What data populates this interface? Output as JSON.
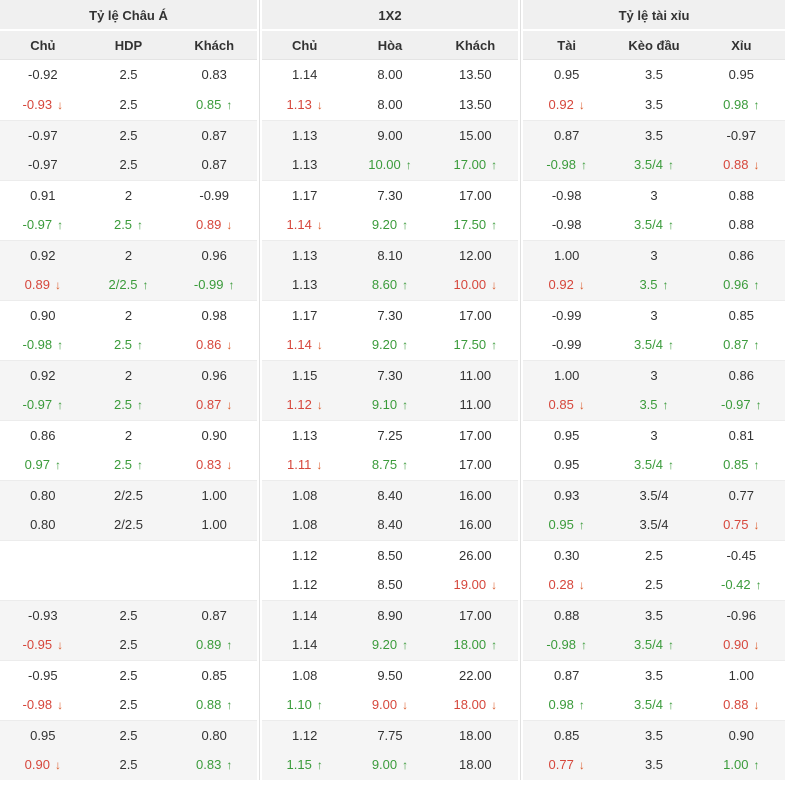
{
  "header": {
    "groups": [
      {
        "title": "Tỷ lệ Châu Á",
        "cols": [
          "Chủ",
          "HDP",
          "Khách"
        ]
      },
      {
        "title": "1X2",
        "cols": [
          "Chủ",
          "Hòa",
          "Khách"
        ]
      },
      {
        "title": "Tỷ lệ tài xỉu",
        "cols": [
          "Tài",
          "Kèo đầu",
          "Xỉu"
        ]
      }
    ]
  },
  "icons": {
    "up": "↑",
    "down": "↓"
  },
  "colors": {
    "up": "#3b9b3b",
    "down": "#d6473c",
    "arrow_up": "#3b9b3b",
    "arrow_down": "#dd5c2c",
    "text": "#333333",
    "header_bg": "#f0f0f0",
    "shaded_row_bg": "#f5f5f5",
    "divider": "#e0e0e0"
  },
  "rows": [
    {
      "shaded": false,
      "cells": [
        [
          "-0.92",
          ""
        ],
        [
          "2.5",
          ""
        ],
        [
          "0.83",
          ""
        ],
        [
          "1.14",
          ""
        ],
        [
          "8.00",
          ""
        ],
        [
          "13.50",
          ""
        ],
        [
          "0.95",
          ""
        ],
        [
          "3.5",
          ""
        ],
        [
          "0.95",
          ""
        ]
      ]
    },
    {
      "shaded": false,
      "cells": [
        [
          "-0.93",
          "down"
        ],
        [
          "2.5",
          ""
        ],
        [
          "0.85",
          "up"
        ],
        [
          "1.13",
          "down"
        ],
        [
          "8.00",
          ""
        ],
        [
          "13.50",
          ""
        ],
        [
          "0.92",
          "down"
        ],
        [
          "3.5",
          ""
        ],
        [
          "0.98",
          "up"
        ]
      ]
    },
    {
      "shaded": true,
      "cells": [
        [
          "-0.97",
          ""
        ],
        [
          "2.5",
          ""
        ],
        [
          "0.87",
          ""
        ],
        [
          "1.13",
          ""
        ],
        [
          "9.00",
          ""
        ],
        [
          "15.00",
          ""
        ],
        [
          "0.87",
          ""
        ],
        [
          "3.5",
          ""
        ],
        [
          "-0.97",
          ""
        ]
      ]
    },
    {
      "shaded": true,
      "cells": [
        [
          "-0.97",
          ""
        ],
        [
          "2.5",
          ""
        ],
        [
          "0.87",
          ""
        ],
        [
          "1.13",
          ""
        ],
        [
          "10.00",
          "up"
        ],
        [
          "17.00",
          "up"
        ],
        [
          "-0.98",
          "up"
        ],
        [
          "3.5/4",
          "up"
        ],
        [
          "0.88",
          "down"
        ]
      ]
    },
    {
      "shaded": false,
      "cells": [
        [
          "0.91",
          ""
        ],
        [
          "2",
          ""
        ],
        [
          "-0.99",
          ""
        ],
        [
          "1.17",
          ""
        ],
        [
          "7.30",
          ""
        ],
        [
          "17.00",
          ""
        ],
        [
          "-0.98",
          ""
        ],
        [
          "3",
          ""
        ],
        [
          "0.88",
          ""
        ]
      ]
    },
    {
      "shaded": false,
      "cells": [
        [
          "-0.97",
          "up"
        ],
        [
          "2.5",
          "up"
        ],
        [
          "0.89",
          "down"
        ],
        [
          "1.14",
          "down"
        ],
        [
          "9.20",
          "up"
        ],
        [
          "17.50",
          "up"
        ],
        [
          "-0.98",
          ""
        ],
        [
          "3.5/4",
          "up"
        ],
        [
          "0.88",
          ""
        ]
      ]
    },
    {
      "shaded": true,
      "cells": [
        [
          "0.92",
          ""
        ],
        [
          "2",
          ""
        ],
        [
          "0.96",
          ""
        ],
        [
          "1.13",
          ""
        ],
        [
          "8.10",
          ""
        ],
        [
          "12.00",
          ""
        ],
        [
          "1.00",
          ""
        ],
        [
          "3",
          ""
        ],
        [
          "0.86",
          ""
        ]
      ]
    },
    {
      "shaded": true,
      "cells": [
        [
          "0.89",
          "down"
        ],
        [
          "2/2.5",
          "up"
        ],
        [
          "-0.99",
          "up"
        ],
        [
          "1.13",
          ""
        ],
        [
          "8.60",
          "up"
        ],
        [
          "10.00",
          "down"
        ],
        [
          "0.92",
          "down"
        ],
        [
          "3.5",
          "up"
        ],
        [
          "0.96",
          "up"
        ]
      ]
    },
    {
      "shaded": false,
      "cells": [
        [
          "0.90",
          ""
        ],
        [
          "2",
          ""
        ],
        [
          "0.98",
          ""
        ],
        [
          "1.17",
          ""
        ],
        [
          "7.30",
          ""
        ],
        [
          "17.00",
          ""
        ],
        [
          "-0.99",
          ""
        ],
        [
          "3",
          ""
        ],
        [
          "0.85",
          ""
        ]
      ]
    },
    {
      "shaded": false,
      "cells": [
        [
          "-0.98",
          "up"
        ],
        [
          "2.5",
          "up"
        ],
        [
          "0.86",
          "down"
        ],
        [
          "1.14",
          "down"
        ],
        [
          "9.20",
          "up"
        ],
        [
          "17.50",
          "up"
        ],
        [
          "-0.99",
          ""
        ],
        [
          "3.5/4",
          "up"
        ],
        [
          "0.87",
          "up"
        ]
      ]
    },
    {
      "shaded": true,
      "cells": [
        [
          "0.92",
          ""
        ],
        [
          "2",
          ""
        ],
        [
          "0.96",
          ""
        ],
        [
          "1.15",
          ""
        ],
        [
          "7.30",
          ""
        ],
        [
          "11.00",
          ""
        ],
        [
          "1.00",
          ""
        ],
        [
          "3",
          ""
        ],
        [
          "0.86",
          ""
        ]
      ]
    },
    {
      "shaded": true,
      "cells": [
        [
          "-0.97",
          "up"
        ],
        [
          "2.5",
          "up"
        ],
        [
          "0.87",
          "down"
        ],
        [
          "1.12",
          "down"
        ],
        [
          "9.10",
          "up"
        ],
        [
          "11.00",
          ""
        ],
        [
          "0.85",
          "down"
        ],
        [
          "3.5",
          "up"
        ],
        [
          "-0.97",
          "up"
        ]
      ]
    },
    {
      "shaded": false,
      "cells": [
        [
          "0.86",
          ""
        ],
        [
          "2",
          ""
        ],
        [
          "0.90",
          ""
        ],
        [
          "1.13",
          ""
        ],
        [
          "7.25",
          ""
        ],
        [
          "17.00",
          ""
        ],
        [
          "0.95",
          ""
        ],
        [
          "3",
          ""
        ],
        [
          "0.81",
          ""
        ]
      ]
    },
    {
      "shaded": false,
      "cells": [
        [
          "0.97",
          "up"
        ],
        [
          "2.5",
          "up"
        ],
        [
          "0.83",
          "down"
        ],
        [
          "1.11",
          "down"
        ],
        [
          "8.75",
          "up"
        ],
        [
          "17.00",
          ""
        ],
        [
          "0.95",
          ""
        ],
        [
          "3.5/4",
          "up"
        ],
        [
          "0.85",
          "up"
        ]
      ]
    },
    {
      "shaded": true,
      "cells": [
        [
          "0.80",
          ""
        ],
        [
          "2/2.5",
          ""
        ],
        [
          "1.00",
          ""
        ],
        [
          "1.08",
          ""
        ],
        [
          "8.40",
          ""
        ],
        [
          "16.00",
          ""
        ],
        [
          "0.93",
          ""
        ],
        [
          "3.5/4",
          ""
        ],
        [
          "0.77",
          ""
        ]
      ]
    },
    {
      "shaded": true,
      "cells": [
        [
          "0.80",
          ""
        ],
        [
          "2/2.5",
          ""
        ],
        [
          "1.00",
          ""
        ],
        [
          "1.08",
          ""
        ],
        [
          "8.40",
          ""
        ],
        [
          "16.00",
          ""
        ],
        [
          "0.95",
          "up"
        ],
        [
          "3.5/4",
          ""
        ],
        [
          "0.75",
          "down"
        ]
      ]
    },
    {
      "shaded": false,
      "cells": [
        [
          "",
          ""
        ],
        [
          "",
          ""
        ],
        [
          "",
          ""
        ],
        [
          "1.12",
          ""
        ],
        [
          "8.50",
          ""
        ],
        [
          "26.00",
          ""
        ],
        [
          "0.30",
          ""
        ],
        [
          "2.5",
          ""
        ],
        [
          "-0.45",
          ""
        ]
      ]
    },
    {
      "shaded": false,
      "cells": [
        [
          "",
          ""
        ],
        [
          "",
          ""
        ],
        [
          "",
          ""
        ],
        [
          "1.12",
          ""
        ],
        [
          "8.50",
          ""
        ],
        [
          "19.00",
          "down"
        ],
        [
          "0.28",
          "down"
        ],
        [
          "2.5",
          ""
        ],
        [
          "-0.42",
          "up"
        ]
      ]
    },
    {
      "shaded": true,
      "cells": [
        [
          "-0.93",
          ""
        ],
        [
          "2.5",
          ""
        ],
        [
          "0.87",
          ""
        ],
        [
          "1.14",
          ""
        ],
        [
          "8.90",
          ""
        ],
        [
          "17.00",
          ""
        ],
        [
          "0.88",
          ""
        ],
        [
          "3.5",
          ""
        ],
        [
          "-0.96",
          ""
        ]
      ]
    },
    {
      "shaded": true,
      "cells": [
        [
          "-0.95",
          "down"
        ],
        [
          "2.5",
          ""
        ],
        [
          "0.89",
          "up"
        ],
        [
          "1.14",
          ""
        ],
        [
          "9.20",
          "up"
        ],
        [
          "18.00",
          "up"
        ],
        [
          "-0.98",
          "up"
        ],
        [
          "3.5/4",
          "up"
        ],
        [
          "0.90",
          "down"
        ]
      ]
    },
    {
      "shaded": false,
      "cells": [
        [
          "-0.95",
          ""
        ],
        [
          "2.5",
          ""
        ],
        [
          "0.85",
          ""
        ],
        [
          "1.08",
          ""
        ],
        [
          "9.50",
          ""
        ],
        [
          "22.00",
          ""
        ],
        [
          "0.87",
          ""
        ],
        [
          "3.5",
          ""
        ],
        [
          "1.00",
          ""
        ]
      ]
    },
    {
      "shaded": false,
      "cells": [
        [
          "-0.98",
          "down"
        ],
        [
          "2.5",
          ""
        ],
        [
          "0.88",
          "up"
        ],
        [
          "1.10",
          "up"
        ],
        [
          "9.00",
          "down"
        ],
        [
          "18.00",
          "down"
        ],
        [
          "0.98",
          "up"
        ],
        [
          "3.5/4",
          "up"
        ],
        [
          "0.88",
          "down"
        ]
      ]
    },
    {
      "shaded": true,
      "cells": [
        [
          "0.95",
          ""
        ],
        [
          "2.5",
          ""
        ],
        [
          "0.80",
          ""
        ],
        [
          "1.12",
          ""
        ],
        [
          "7.75",
          ""
        ],
        [
          "18.00",
          ""
        ],
        [
          "0.85",
          ""
        ],
        [
          "3.5",
          ""
        ],
        [
          "0.90",
          ""
        ]
      ]
    },
    {
      "shaded": true,
      "cells": [
        [
          "0.90",
          "down"
        ],
        [
          "2.5",
          ""
        ],
        [
          "0.83",
          "up"
        ],
        [
          "1.15",
          "up"
        ],
        [
          "9.00",
          "up"
        ],
        [
          "18.00",
          ""
        ],
        [
          "0.77",
          "down"
        ],
        [
          "3.5",
          ""
        ],
        [
          "1.00",
          "up"
        ]
      ]
    }
  ]
}
